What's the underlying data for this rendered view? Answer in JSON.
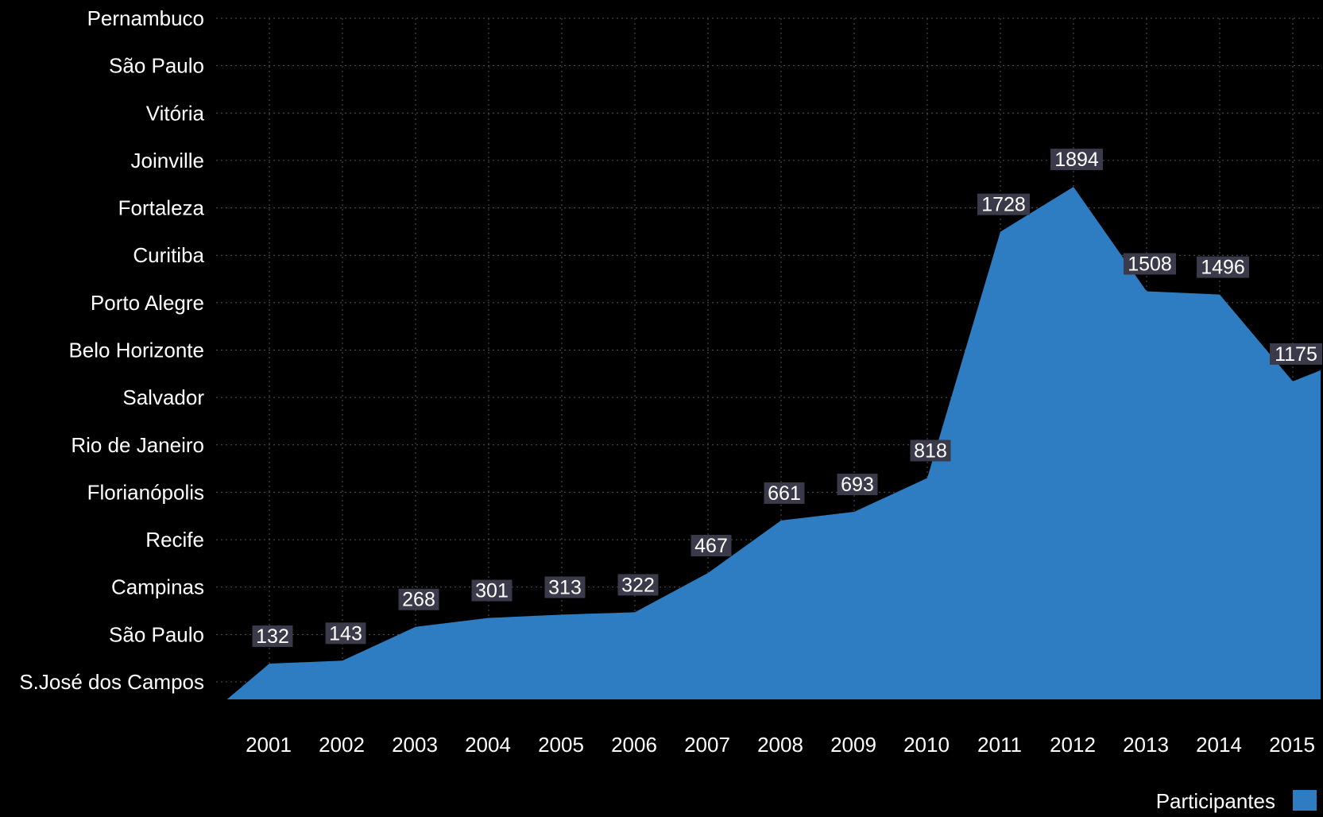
{
  "chart_data": {
    "type": "area",
    "x": [
      "2001",
      "2002",
      "2003",
      "2004",
      "2005",
      "2006",
      "2007",
      "2008",
      "2009",
      "2010",
      "2011",
      "2012",
      "2013",
      "2014",
      "2015"
    ],
    "series": [
      {
        "name": "Participantes",
        "values": [
          132,
          143,
          268,
          301,
          313,
          322,
          467,
          661,
          693,
          818,
          1728,
          1894,
          1508,
          1496,
          1175
        ]
      }
    ],
    "y_category_labels": [
      "S.José dos Campos",
      "São Paulo",
      "Campinas",
      "Recife",
      "Florianópolis",
      "Rio de Janeiro",
      "Salvador",
      "Belo Horizonte",
      "Porto Alegre",
      "Curitiba",
      "Fortaleza",
      "Joinville",
      "Vitória",
      "São Paulo",
      "Pernambuco"
    ],
    "grid": true,
    "legend": "bottom-right",
    "colors": {
      "background": "#000000",
      "area": "#2e7dc2",
      "label_box": "#3a3a4a",
      "text": "#ffffff",
      "grid": "#555555"
    }
  }
}
